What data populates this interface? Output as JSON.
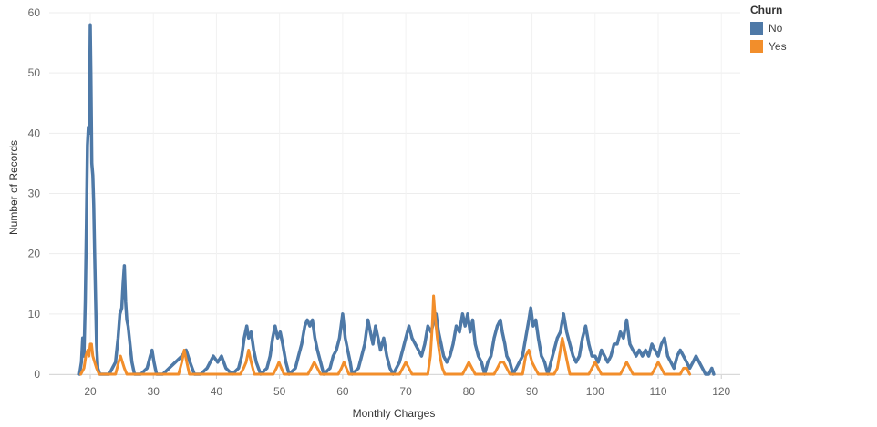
{
  "chart_data": {
    "type": "line",
    "xlabel": "Monthly Charges",
    "ylabel": "Number of Records",
    "xlim": [
      13.5,
      123
    ],
    "ylim": [
      0,
      60
    ],
    "xticks": [
      20,
      30,
      40,
      50,
      60,
      70,
      80,
      90,
      100,
      110,
      120
    ],
    "yticks": [
      0,
      10,
      20,
      30,
      40,
      50,
      60
    ],
    "grid": true,
    "legend": {
      "title": "Churn",
      "placement": "top-right",
      "entries": [
        {
          "label": "No",
          "color": "#4e79a7"
        },
        {
          "label": "Yes",
          "color": "#f28e2b"
        }
      ]
    },
    "series": [
      {
        "name": "No",
        "color": "#4e79a7",
        "points": [
          [
            18.3,
            0
          ],
          [
            18.6,
            2
          ],
          [
            18.8,
            6
          ],
          [
            19.0,
            3
          ],
          [
            19.2,
            12
          ],
          [
            19.4,
            25
          ],
          [
            19.55,
            38
          ],
          [
            19.7,
            41
          ],
          [
            19.85,
            40
          ],
          [
            20.0,
            58
          ],
          [
            20.1,
            50
          ],
          [
            20.25,
            35
          ],
          [
            20.4,
            33
          ],
          [
            20.55,
            28
          ],
          [
            20.7,
            20
          ],
          [
            20.85,
            12
          ],
          [
            21.0,
            5
          ],
          [
            21.2,
            1
          ],
          [
            21.5,
            0
          ],
          [
            22.0,
            0
          ],
          [
            23.0,
            0
          ],
          [
            23.5,
            1
          ],
          [
            24.0,
            2
          ],
          [
            24.4,
            6
          ],
          [
            24.7,
            10
          ],
          [
            25.0,
            11
          ],
          [
            25.2,
            15
          ],
          [
            25.4,
            18
          ],
          [
            25.6,
            12
          ],
          [
            25.8,
            9
          ],
          [
            26.0,
            8
          ],
          [
            26.3,
            5
          ],
          [
            26.6,
            2
          ],
          [
            27.0,
            0
          ],
          [
            28.0,
            0
          ],
          [
            29.0,
            1
          ],
          [
            29.5,
            3
          ],
          [
            29.8,
            4
          ],
          [
            30.1,
            2
          ],
          [
            30.5,
            0
          ],
          [
            31.5,
            0
          ],
          [
            32.5,
            1
          ],
          [
            33.5,
            2
          ],
          [
            34.5,
            3
          ],
          [
            35.2,
            4
          ],
          [
            35.8,
            2
          ],
          [
            36.5,
            0
          ],
          [
            37.5,
            0
          ],
          [
            38.5,
            1
          ],
          [
            39.5,
            3
          ],
          [
            40.2,
            2
          ],
          [
            40.8,
            3
          ],
          [
            41.5,
            1
          ],
          [
            42.5,
            0
          ],
          [
            43.5,
            1
          ],
          [
            44.0,
            3
          ],
          [
            44.4,
            6
          ],
          [
            44.8,
            8
          ],
          [
            45.1,
            6
          ],
          [
            45.5,
            7
          ],
          [
            45.9,
            4
          ],
          [
            46.3,
            2
          ],
          [
            47.0,
            0
          ],
          [
            48.0,
            1
          ],
          [
            48.5,
            3
          ],
          [
            48.9,
            6
          ],
          [
            49.3,
            8
          ],
          [
            49.7,
            6
          ],
          [
            50.1,
            7
          ],
          [
            50.5,
            5
          ],
          [
            51.0,
            2
          ],
          [
            51.5,
            0
          ],
          [
            52.5,
            1
          ],
          [
            53.0,
            3
          ],
          [
            53.5,
            5
          ],
          [
            54.0,
            8
          ],
          [
            54.4,
            9
          ],
          [
            54.8,
            8
          ],
          [
            55.2,
            9
          ],
          [
            55.6,
            6
          ],
          [
            56.0,
            4
          ],
          [
            56.5,
            2
          ],
          [
            57.0,
            0
          ],
          [
            58.0,
            1
          ],
          [
            58.5,
            3
          ],
          [
            59.0,
            4
          ],
          [
            59.5,
            6
          ],
          [
            60.0,
            10
          ],
          [
            60.4,
            6
          ],
          [
            60.8,
            4
          ],
          [
            61.2,
            2
          ],
          [
            61.5,
            0
          ],
          [
            62.5,
            1
          ],
          [
            63.0,
            3
          ],
          [
            63.5,
            5
          ],
          [
            64.0,
            9
          ],
          [
            64.4,
            7
          ],
          [
            64.8,
            5
          ],
          [
            65.2,
            8
          ],
          [
            65.6,
            6
          ],
          [
            66.0,
            4
          ],
          [
            66.5,
            6
          ],
          [
            67.0,
            3
          ],
          [
            67.5,
            1
          ],
          [
            68.0,
            0
          ],
          [
            69.0,
            2
          ],
          [
            69.5,
            4
          ],
          [
            70.0,
            6
          ],
          [
            70.5,
            8
          ],
          [
            71.0,
            6
          ],
          [
            71.5,
            5
          ],
          [
            72.0,
            4
          ],
          [
            72.5,
            3
          ],
          [
            73.0,
            5
          ],
          [
            73.5,
            8
          ],
          [
            74.0,
            7
          ],
          [
            74.5,
            9
          ],
          [
            74.8,
            10
          ],
          [
            75.2,
            7
          ],
          [
            75.6,
            5
          ],
          [
            76.0,
            3
          ],
          [
            76.5,
            2
          ],
          [
            77.0,
            3
          ],
          [
            77.5,
            5
          ],
          [
            78.0,
            8
          ],
          [
            78.5,
            7
          ],
          [
            79.0,
            10
          ],
          [
            79.4,
            8
          ],
          [
            79.8,
            10
          ],
          [
            80.2,
            7
          ],
          [
            80.6,
            9
          ],
          [
            81.0,
            5
          ],
          [
            81.5,
            3
          ],
          [
            82.0,
            2
          ],
          [
            82.5,
            0
          ],
          [
            83.0,
            2
          ],
          [
            83.5,
            3
          ],
          [
            84.0,
            6
          ],
          [
            84.5,
            8
          ],
          [
            85.0,
            9
          ],
          [
            85.3,
            7
          ],
          [
            85.7,
            5
          ],
          [
            86.0,
            3
          ],
          [
            86.5,
            2
          ],
          [
            87.0,
            0
          ],
          [
            87.5,
            1
          ],
          [
            88.0,
            2
          ],
          [
            88.5,
            3
          ],
          [
            89.0,
            6
          ],
          [
            89.5,
            9
          ],
          [
            89.8,
            11
          ],
          [
            90.2,
            8
          ],
          [
            90.6,
            9
          ],
          [
            91.0,
            6
          ],
          [
            91.5,
            3
          ],
          [
            92.0,
            2
          ],
          [
            92.5,
            0
          ],
          [
            93.0,
            2
          ],
          [
            93.5,
            4
          ],
          [
            94.0,
            6
          ],
          [
            94.5,
            7
          ],
          [
            95.0,
            10
          ],
          [
            95.5,
            7
          ],
          [
            96.0,
            5
          ],
          [
            96.5,
            3
          ],
          [
            97.0,
            2
          ],
          [
            97.5,
            3
          ],
          [
            98.0,
            6
          ],
          [
            98.5,
            8
          ],
          [
            99.0,
            5
          ],
          [
            99.5,
            3
          ],
          [
            100.0,
            3
          ],
          [
            100.5,
            2
          ],
          [
            101.0,
            4
          ],
          [
            101.5,
            3
          ],
          [
            102.0,
            2
          ],
          [
            102.5,
            3
          ],
          [
            103.0,
            5
          ],
          [
            103.5,
            5
          ],
          [
            104.0,
            7
          ],
          [
            104.5,
            6
          ],
          [
            105.0,
            9
          ],
          [
            105.5,
            5
          ],
          [
            106.0,
            4
          ],
          [
            106.5,
            3
          ],
          [
            107.0,
            4
          ],
          [
            107.5,
            3
          ],
          [
            108.0,
            4
          ],
          [
            108.5,
            3
          ],
          [
            109.0,
            5
          ],
          [
            109.5,
            4
          ],
          [
            110.0,
            3
          ],
          [
            110.5,
            5
          ],
          [
            111.0,
            6
          ],
          [
            111.5,
            3
          ],
          [
            112.0,
            2
          ],
          [
            112.5,
            1
          ],
          [
            113.0,
            3
          ],
          [
            113.5,
            4
          ],
          [
            114.0,
            3
          ],
          [
            114.5,
            2
          ],
          [
            115.0,
            1
          ],
          [
            115.5,
            2
          ],
          [
            116.0,
            3
          ],
          [
            116.5,
            2
          ],
          [
            117.0,
            1
          ],
          [
            117.5,
            0
          ],
          [
            118.0,
            0
          ],
          [
            118.5,
            1
          ],
          [
            118.8,
            0
          ]
        ]
      },
      {
        "name": "Yes",
        "color": "#f28e2b",
        "points": [
          [
            18.5,
            0
          ],
          [
            19.0,
            1
          ],
          [
            19.3,
            3
          ],
          [
            19.6,
            4
          ],
          [
            19.8,
            3
          ],
          [
            20.0,
            5
          ],
          [
            20.2,
            5
          ],
          [
            20.4,
            3
          ],
          [
            20.7,
            2
          ],
          [
            21.0,
            1
          ],
          [
            21.4,
            0
          ],
          [
            24.0,
            0
          ],
          [
            24.5,
            2
          ],
          [
            24.8,
            3
          ],
          [
            25.1,
            2
          ],
          [
            25.4,
            1
          ],
          [
            25.8,
            0
          ],
          [
            34.0,
            0
          ],
          [
            34.5,
            2
          ],
          [
            34.9,
            4
          ],
          [
            35.3,
            2
          ],
          [
            35.7,
            0
          ],
          [
            43.8,
            0
          ],
          [
            44.3,
            1
          ],
          [
            44.7,
            2
          ],
          [
            45.1,
            4
          ],
          [
            45.5,
            2
          ],
          [
            46.0,
            0
          ],
          [
            49.0,
            0
          ],
          [
            49.5,
            1
          ],
          [
            49.9,
            2
          ],
          [
            50.3,
            1
          ],
          [
            50.7,
            0
          ],
          [
            54.5,
            0
          ],
          [
            55.0,
            1
          ],
          [
            55.5,
            2
          ],
          [
            56.0,
            1
          ],
          [
            56.5,
            0
          ],
          [
            59.3,
            0
          ],
          [
            59.8,
            1
          ],
          [
            60.2,
            2
          ],
          [
            60.6,
            1
          ],
          [
            61.0,
            0
          ],
          [
            69.0,
            0
          ],
          [
            69.5,
            1
          ],
          [
            70.0,
            2
          ],
          [
            70.5,
            1
          ],
          [
            71.0,
            0
          ],
          [
            73.5,
            0
          ],
          [
            73.9,
            3
          ],
          [
            74.2,
            8
          ],
          [
            74.4,
            13
          ],
          [
            74.7,
            9
          ],
          [
            75.0,
            6
          ],
          [
            75.4,
            3
          ],
          [
            75.8,
            1
          ],
          [
            76.2,
            0
          ],
          [
            79.0,
            0
          ],
          [
            79.5,
            1
          ],
          [
            80.0,
            2
          ],
          [
            80.5,
            1
          ],
          [
            81.0,
            0
          ],
          [
            84.0,
            0
          ],
          [
            84.5,
            1
          ],
          [
            85.0,
            2
          ],
          [
            85.5,
            2
          ],
          [
            86.0,
            1
          ],
          [
            86.5,
            0
          ],
          [
            88.5,
            0
          ],
          [
            89.0,
            3
          ],
          [
            89.5,
            4
          ],
          [
            90.0,
            2
          ],
          [
            90.5,
            1
          ],
          [
            91.0,
            0
          ],
          [
            93.5,
            0
          ],
          [
            94.0,
            1
          ],
          [
            94.5,
            4
          ],
          [
            94.8,
            6
          ],
          [
            95.2,
            4
          ],
          [
            95.6,
            2
          ],
          [
            96.0,
            0
          ],
          [
            99.0,
            0
          ],
          [
            99.5,
            1
          ],
          [
            100.0,
            2
          ],
          [
            100.5,
            1
          ],
          [
            101.0,
            0
          ],
          [
            104.0,
            0
          ],
          [
            104.5,
            1
          ],
          [
            105.0,
            2
          ],
          [
            105.5,
            1
          ],
          [
            106.0,
            0
          ],
          [
            109.0,
            0
          ],
          [
            109.5,
            1
          ],
          [
            110.0,
            2
          ],
          [
            110.5,
            1
          ],
          [
            111.0,
            0
          ],
          [
            113.5,
            0
          ],
          [
            114.0,
            1
          ],
          [
            114.5,
            1
          ],
          [
            115.0,
            0
          ]
        ]
      }
    ]
  }
}
